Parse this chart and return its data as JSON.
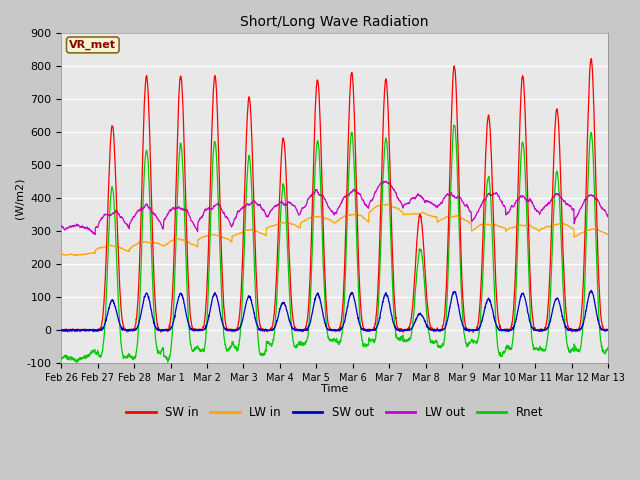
{
  "title": "Short/Long Wave Radiation",
  "xlabel": "Time",
  "ylabel": "(W/m2)",
  "ylim": [
    -100,
    900
  ],
  "annotation": "VR_met",
  "fig_bg": "#c8c8c8",
  "plot_bg": "#e8e8e8",
  "series": {
    "SW_in": {
      "color": "#ff0000",
      "lw": 0.9
    },
    "LW_in": {
      "color": "#ffa500",
      "lw": 0.9
    },
    "SW_out": {
      "color": "#0000cd",
      "lw": 0.9
    },
    "LW_out": {
      "color": "#cc00cc",
      "lw": 0.9
    },
    "Rnet": {
      "color": "#00cc00",
      "lw": 0.9
    }
  },
  "legend": {
    "labels": [
      "SW in",
      "LW in",
      "SW out",
      "LW out",
      "Rnet"
    ],
    "colors": [
      "#ff0000",
      "#ffa500",
      "#0000cd",
      "#cc00cc",
      "#00cc00"
    ]
  },
  "xtick_labels": [
    "Feb 26",
    "Feb 27",
    "Feb 28",
    "Mar 1",
    "Mar 2",
    "Mar 3",
    "Mar 4",
    "Mar 5",
    "Mar 6",
    "Mar 7",
    "Mar 8",
    "Mar 9",
    "Mar 10",
    "Mar 11",
    "Mar 12",
    "Mar 13"
  ],
  "yticks": [
    -100,
    0,
    100,
    200,
    300,
    400,
    500,
    600,
    700,
    800,
    900
  ],
  "n_days": 16,
  "pts_per_day": 144,
  "sw_in_peaks": [
    0,
    620,
    770,
    770,
    770,
    705,
    580,
    760,
    780,
    760,
    350,
    800,
    650,
    770,
    670,
    820
  ],
  "lw_in_base": [
    230,
    240,
    250,
    255,
    270,
    285,
    310,
    325,
    330,
    360,
    345,
    325,
    305,
    300,
    305,
    285
  ],
  "lw_out_base": [
    310,
    310,
    315,
    315,
    320,
    335,
    345,
    355,
    360,
    385,
    375,
    355,
    355,
    345,
    355,
    340
  ]
}
